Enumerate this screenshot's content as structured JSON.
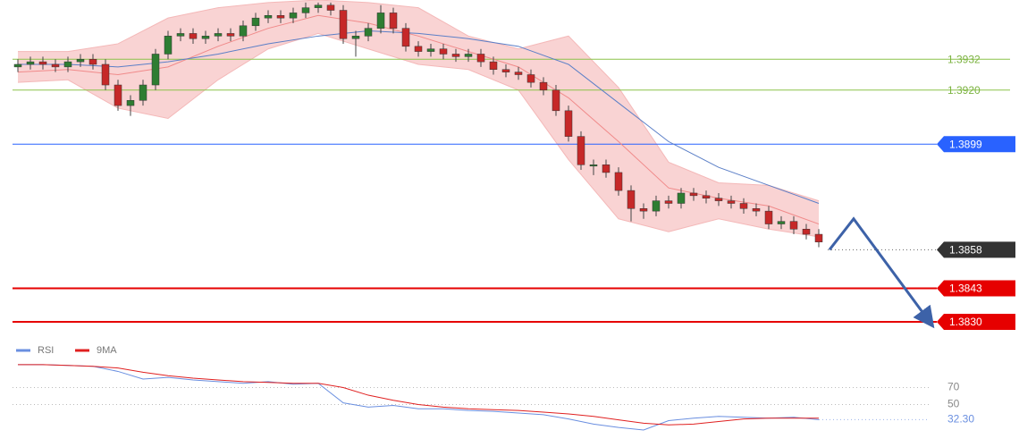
{
  "chart_data": {
    "type": "candlestick",
    "ylim": [
      1.3822,
      1.3955
    ],
    "candles": {
      "up_color": "#2e7d32",
      "down_color": "#c62828",
      "open": [
        1.3929,
        1.393,
        1.3931,
        1.393,
        1.3929,
        1.3931,
        1.3932,
        1.393,
        1.3922,
        1.3914,
        1.3916,
        1.3922,
        1.3934,
        1.3941,
        1.3942,
        1.394,
        1.3941,
        1.3942,
        1.3941,
        1.3945,
        1.3948,
        1.3949,
        1.3948,
        1.395,
        1.3952,
        1.3953,
        1.3951,
        1.394,
        1.3941,
        1.3944,
        1.395,
        1.3944,
        1.3937,
        1.3935,
        1.3936,
        1.3934,
        1.3933,
        1.3934,
        1.3931,
        1.3928,
        1.3927,
        1.3926,
        1.3923,
        1.392,
        1.3912,
        1.3902,
        1.3891,
        1.3891,
        1.3888,
        1.3881,
        1.3874,
        1.3873,
        1.3877,
        1.3876,
        1.388,
        1.3879,
        1.3878,
        1.3877,
        1.3876,
        1.3874,
        1.3873,
        1.3868,
        1.3869,
        1.3866,
        1.3864
      ],
      "high": [
        1.3932,
        1.3933,
        1.3933,
        1.3932,
        1.3933,
        1.3934,
        1.3934,
        1.3932,
        1.3924,
        1.3918,
        1.3924,
        1.3936,
        1.3943,
        1.3944,
        1.3944,
        1.3943,
        1.3944,
        1.3944,
        1.3947,
        1.395,
        1.3951,
        1.3951,
        1.3952,
        1.3954,
        1.3954,
        1.3954,
        1.3953,
        1.3943,
        1.3946,
        1.3953,
        1.3952,
        1.3946,
        1.3939,
        1.3938,
        1.3938,
        1.3936,
        1.3936,
        1.3936,
        1.3933,
        1.393,
        1.3929,
        1.3928,
        1.3925,
        1.3922,
        1.3914,
        1.3904,
        1.3893,
        1.3893,
        1.389,
        1.3883,
        1.3876,
        1.3879,
        1.3879,
        1.3882,
        1.3882,
        1.3881,
        1.388,
        1.3879,
        1.3878,
        1.3876,
        1.3875,
        1.3871,
        1.3871,
        1.3868,
        1.3866
      ],
      "low": [
        1.3927,
        1.3928,
        1.3928,
        1.3927,
        1.3927,
        1.3929,
        1.3928,
        1.392,
        1.3912,
        1.391,
        1.3914,
        1.392,
        1.3932,
        1.3939,
        1.3938,
        1.3938,
        1.3939,
        1.3939,
        1.3939,
        1.3943,
        1.3946,
        1.3946,
        1.3946,
        1.3948,
        1.395,
        1.3949,
        1.3938,
        1.3933,
        1.3939,
        1.3942,
        1.3942,
        1.3935,
        1.3933,
        1.3933,
        1.3932,
        1.3931,
        1.3931,
        1.3929,
        1.3926,
        1.3925,
        1.3924,
        1.3921,
        1.3918,
        1.391,
        1.39,
        1.3889,
        1.3887,
        1.3886,
        1.3879,
        1.3869,
        1.387,
        1.3871,
        1.3874,
        1.3874,
        1.3877,
        1.3876,
        1.3875,
        1.3874,
        1.3872,
        1.3871,
        1.3866,
        1.3866,
        1.3864,
        1.3862,
        1.3859
      ],
      "close": [
        1.393,
        1.3931,
        1.393,
        1.3929,
        1.3931,
        1.3932,
        1.393,
        1.3922,
        1.3914,
        1.3916,
        1.3922,
        1.3934,
        1.3941,
        1.3942,
        1.394,
        1.3941,
        1.3942,
        1.3941,
        1.3945,
        1.3948,
        1.3949,
        1.3948,
        1.395,
        1.3952,
        1.3953,
        1.3951,
        1.394,
        1.3941,
        1.3944,
        1.395,
        1.3944,
        1.3937,
        1.3935,
        1.3936,
        1.3934,
        1.3933,
        1.3934,
        1.3931,
        1.3928,
        1.3927,
        1.3926,
        1.3923,
        1.392,
        1.3912,
        1.3902,
        1.3891,
        1.3891,
        1.3888,
        1.3881,
        1.3874,
        1.3873,
        1.3877,
        1.3876,
        1.388,
        1.3879,
        1.3878,
        1.3877,
        1.3876,
        1.3874,
        1.3873,
        1.3868,
        1.3869,
        1.3866,
        1.3864,
        1.3861
      ]
    },
    "overlay_index": [
      0,
      4,
      8,
      12,
      16,
      20,
      24,
      28,
      32,
      36,
      40,
      44,
      48,
      52,
      56,
      60,
      64
    ],
    "bollinger": {
      "color": "#f9d3d3",
      "line_color": "#f4b8b8",
      "upper": [
        1.3935,
        1.3935,
        1.3938,
        1.3948,
        1.3952,
        1.3954,
        1.3955,
        1.3954,
        1.3952,
        1.3941,
        1.3936,
        1.3941,
        1.3921,
        1.3892,
        1.3884,
        1.3883,
        1.3877
      ],
      "lower": [
        1.3923,
        1.3924,
        1.3913,
        1.3909,
        1.3924,
        1.3936,
        1.3942,
        1.3936,
        1.393,
        1.3928,
        1.392,
        1.3893,
        1.387,
        1.3865,
        1.387,
        1.3866,
        1.3863
      ]
    },
    "lines": [
      {
        "color": "#f08a8a",
        "values": [
          1.3927,
          1.3928,
          1.3926,
          1.3929,
          1.3937,
          1.3944,
          1.3949,
          1.3946,
          1.3941,
          1.3935,
          1.3929,
          1.3917,
          1.39,
          1.3882,
          1.3878,
          1.3875,
          1.3868
        ]
      },
      {
        "color": "#5b7fc7",
        "values": [
          1.393,
          1.393,
          1.3929,
          1.3931,
          1.3934,
          1.3938,
          1.3941,
          1.3943,
          1.3942,
          1.394,
          1.3937,
          1.393,
          1.3915,
          1.39,
          1.389,
          1.3883,
          1.3876
        ]
      }
    ],
    "levels": [
      {
        "value": 1.3932,
        "label": "1.3932",
        "color": "#8bc34a",
        "box": false
      },
      {
        "value": 1.392,
        "label": "1.3920",
        "color": "#8bc34a",
        "box": false
      },
      {
        "value": 1.3899,
        "label": "1.3899",
        "color": "#2962ff",
        "box": true
      },
      {
        "value": 1.3858,
        "label": "1.3858",
        "color": "#333333",
        "box": true,
        "dotted": true
      },
      {
        "value": 1.3843,
        "label": "1.3843",
        "color": "#e60000",
        "box": true,
        "width": 2
      },
      {
        "value": 1.383,
        "label": "1.3830",
        "color": "#e60000",
        "box": true,
        "width": 2
      }
    ],
    "forecast": {
      "color": "#3d62a8",
      "values": [
        1.3858,
        1.387,
        1.383
      ]
    },
    "rsi": {
      "ylim": [
        0,
        100
      ],
      "yticks": [
        70,
        50
      ],
      "index": [
        0,
        2,
        4,
        6,
        8,
        10,
        12,
        14,
        16,
        18,
        20,
        22,
        24,
        26,
        28,
        30,
        32,
        34,
        36,
        38,
        40,
        42,
        44,
        46,
        48,
        50,
        52,
        54,
        56,
        58,
        60,
        62,
        64
      ],
      "series": [
        {
          "name": "RSI",
          "color": "#6a8fe0",
          "values": [
            97,
            97,
            96,
            95,
            89,
            80,
            82,
            79,
            77,
            75,
            77,
            74,
            75,
            52,
            47,
            49,
            45,
            45,
            43,
            42,
            40,
            38,
            33,
            27,
            23,
            20,
            31,
            34,
            36,
            35,
            34,
            35,
            32.3
          ]
        },
        {
          "name": "9MA",
          "color": "#e02020",
          "values": [
            97,
            97,
            96,
            95,
            93,
            88,
            84,
            81,
            79,
            77,
            76,
            75,
            75,
            70,
            61,
            55,
            50,
            47,
            45,
            44,
            43,
            41,
            39,
            36,
            32,
            28,
            26,
            27,
            30,
            33,
            34,
            34,
            34
          ]
        }
      ],
      "current": {
        "value": 32.3,
        "label": "32.30"
      }
    }
  }
}
